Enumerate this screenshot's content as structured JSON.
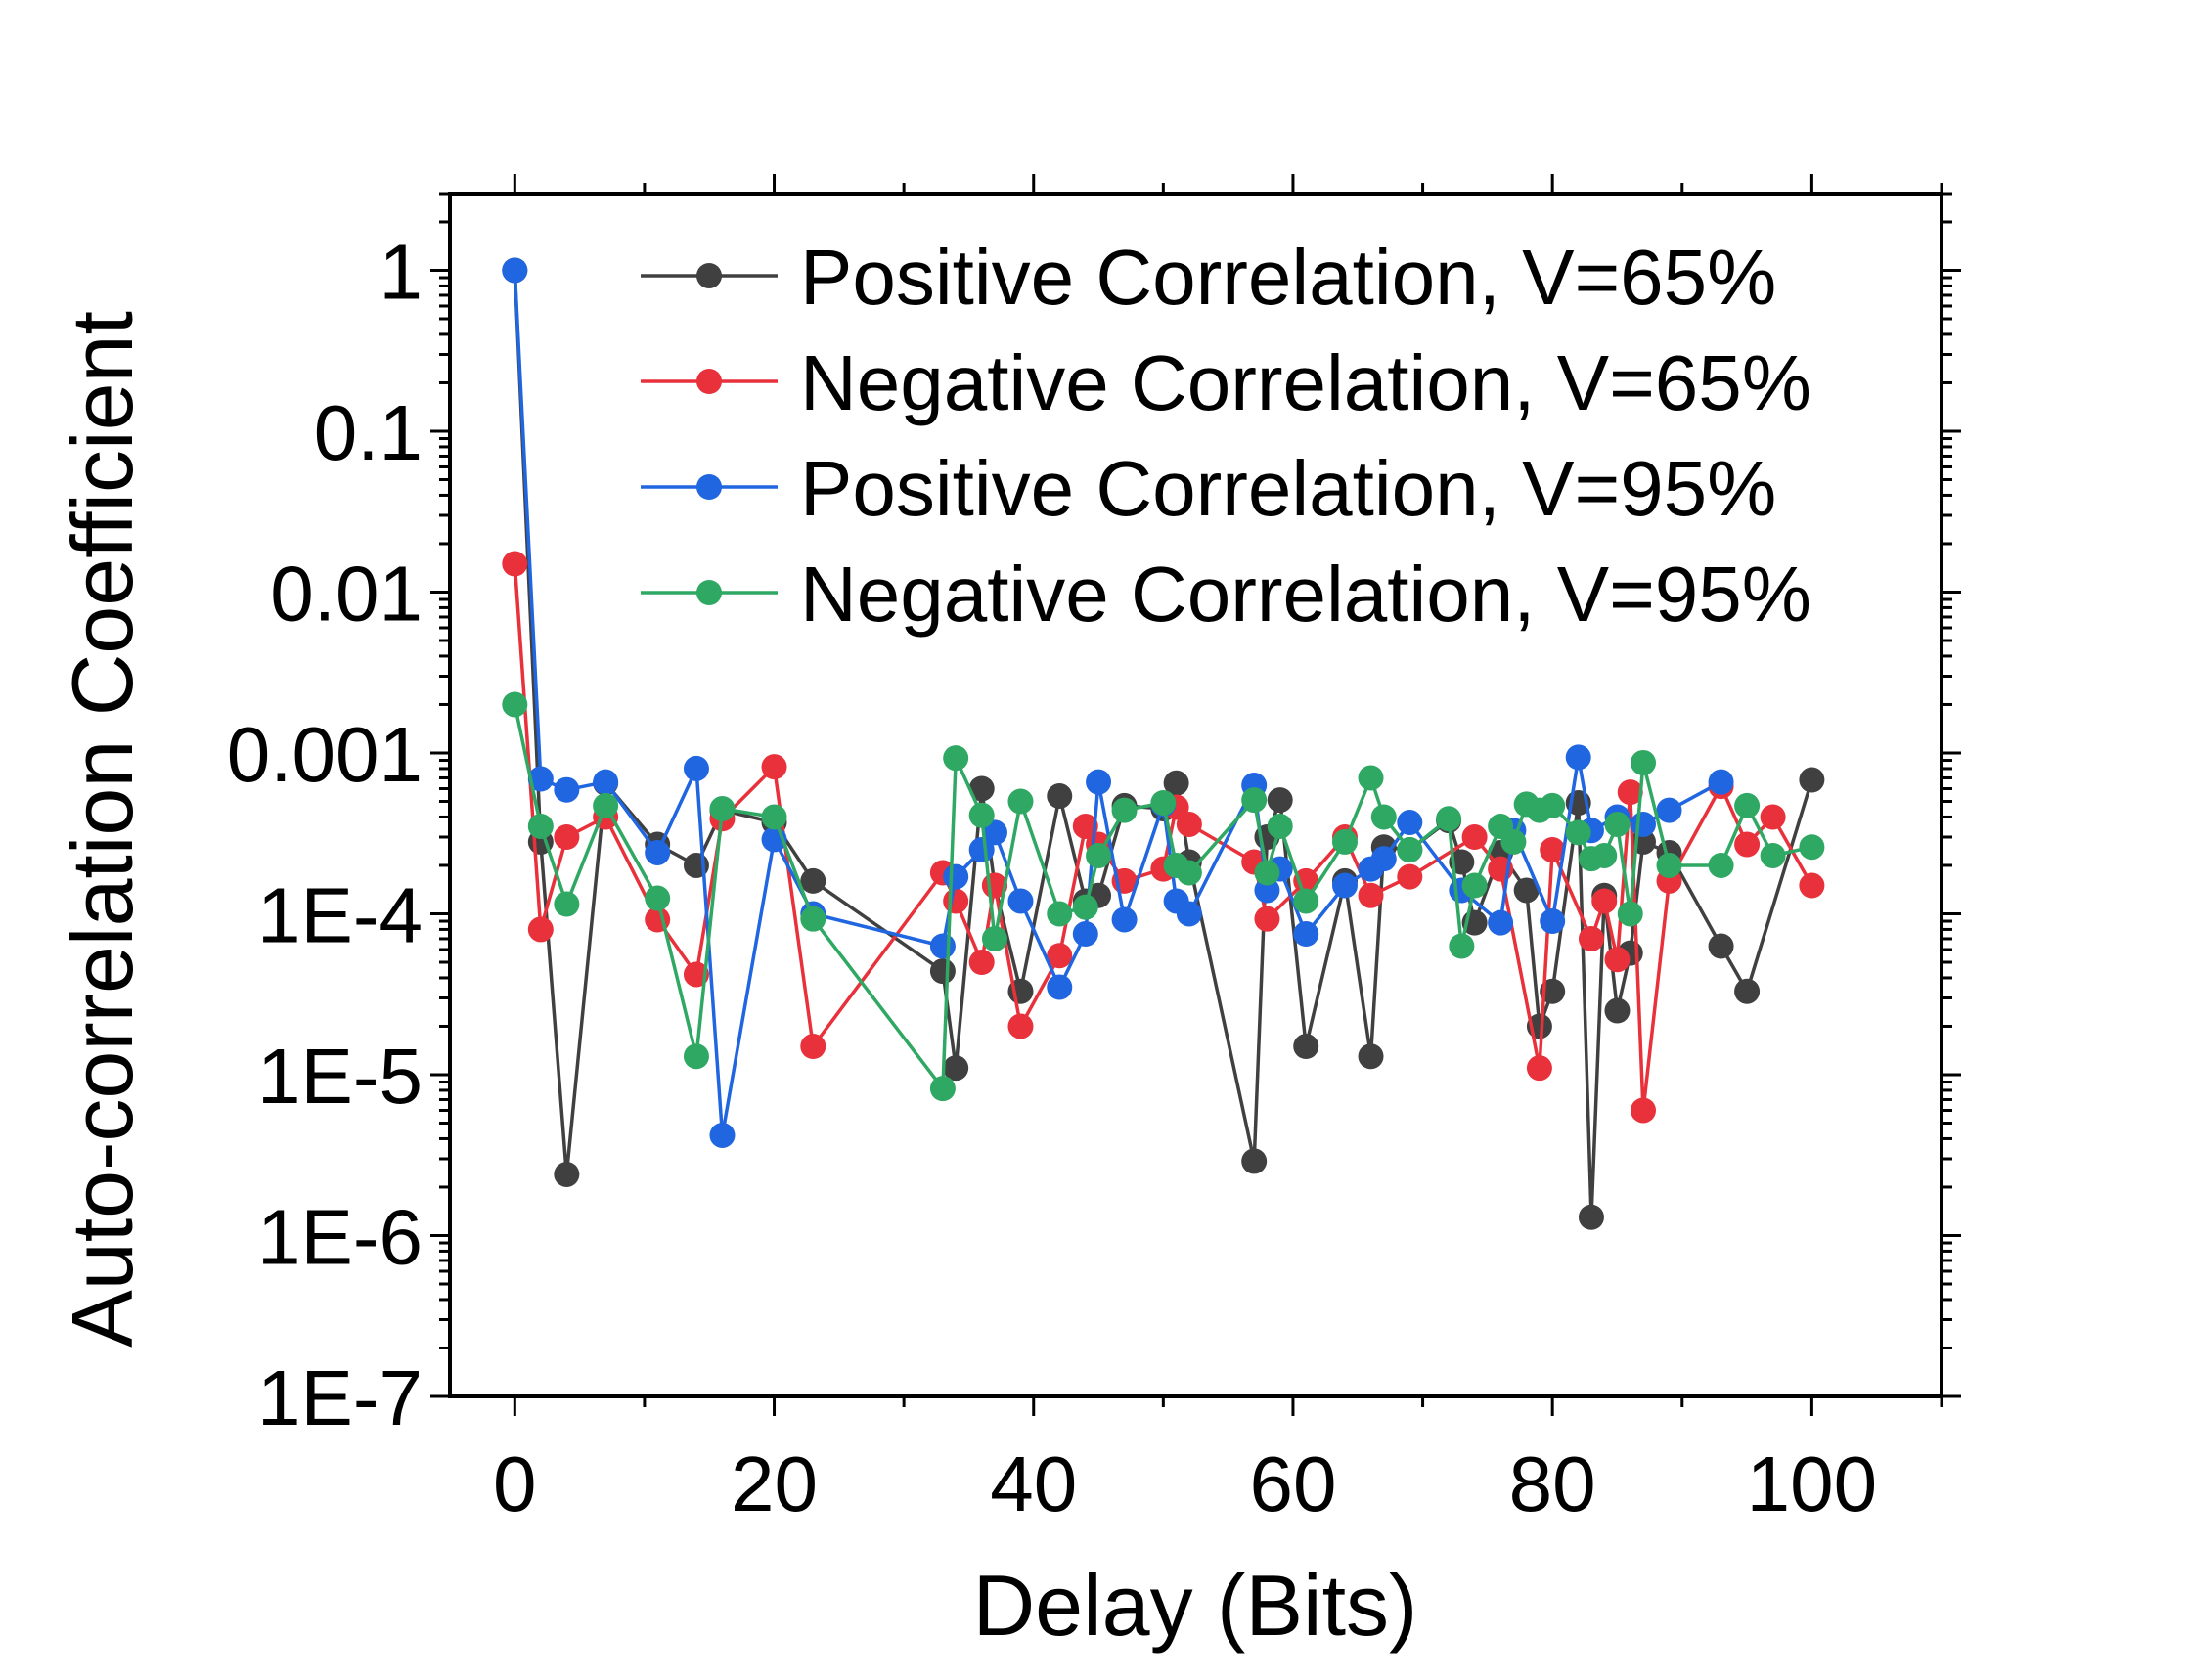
{
  "chart_data": {
    "type": "line",
    "title": "",
    "xlabel": "Delay (Bits)",
    "ylabel": "Auto-correlation Coefficient",
    "xlim": [
      -5,
      110
    ],
    "ylim": [
      1e-07,
      3
    ],
    "yscale": "log",
    "xticks": [
      0,
      20,
      40,
      60,
      80,
      100
    ],
    "xtick_labels": [
      "0",
      "20",
      "40",
      "60",
      "80",
      "100"
    ],
    "yticks": [
      1,
      0.1,
      0.01,
      0.001,
      0.0001,
      1e-05,
      1e-06,
      1e-07
    ],
    "ytick_labels": [
      "1",
      "0.1",
      "0.01",
      "0.001",
      "1E-4",
      "1E-5",
      "1E-6",
      "1E-7"
    ],
    "legend_position": "top-right",
    "series": [
      {
        "name": "Positive Correlation, V=65%",
        "color": "#404040",
        "points": [
          [
            0,
            1
          ],
          [
            2,
            0.00028
          ],
          [
            4,
            2.4e-06
          ],
          [
            7,
            0.00065
          ],
          [
            11,
            0.00027
          ],
          [
            14,
            0.0002
          ],
          [
            16,
            0.00044
          ],
          [
            20,
            0.00037
          ],
          [
            23,
            0.00016
          ],
          [
            33,
            4.4e-05
          ],
          [
            34,
            1.1e-05
          ],
          [
            36,
            0.0006
          ],
          [
            37,
            0.00015
          ],
          [
            39,
            3.3e-05
          ],
          [
            42,
            0.00054
          ],
          [
            44,
            0.00012
          ],
          [
            45,
            0.00013
          ],
          [
            47,
            0.00047
          ],
          [
            50,
            0.00045
          ],
          [
            51,
            0.00065
          ],
          [
            52,
            0.00021
          ],
          [
            57,
            2.9e-06
          ],
          [
            58,
            0.0003
          ],
          [
            59,
            0.00051
          ],
          [
            61,
            1.5e-05
          ],
          [
            64,
            0.00016
          ],
          [
            66,
            1.3e-05
          ],
          [
            67,
            0.00026
          ],
          [
            69,
            0.00025
          ],
          [
            72,
            0.00038
          ],
          [
            73,
            0.00021
          ],
          [
            74,
            8.8e-05
          ],
          [
            76,
            0.00024
          ],
          [
            78,
            0.00014
          ],
          [
            79,
            2e-05
          ],
          [
            80,
            3.3e-05
          ],
          [
            82,
            0.00049
          ],
          [
            83,
            1.3e-06
          ],
          [
            84,
            0.00013
          ],
          [
            85,
            2.5e-05
          ],
          [
            86,
            5.7e-05
          ],
          [
            87,
            0.00028
          ],
          [
            89,
            0.00024
          ],
          [
            93,
            6.3e-05
          ],
          [
            95,
            3.3e-05
          ],
          [
            100,
            0.00068
          ]
        ]
      },
      {
        "name": "Negative Correlation, V=65%",
        "color": "#e8313b",
        "points": [
          [
            0,
            0.015
          ],
          [
            2,
            8e-05
          ],
          [
            4,
            0.0003
          ],
          [
            7,
            0.0004
          ],
          [
            11,
            9.2e-05
          ],
          [
            14,
            4.2e-05
          ],
          [
            16,
            0.00039
          ],
          [
            20,
            0.00082
          ],
          [
            23,
            1.5e-05
          ],
          [
            33,
            0.00018
          ],
          [
            34,
            0.00012
          ],
          [
            36,
            5e-05
          ],
          [
            37,
            0.00015
          ],
          [
            39,
            2e-05
          ],
          [
            42,
            5.5e-05
          ],
          [
            44,
            0.00035
          ],
          [
            45,
            0.00027
          ],
          [
            47,
            0.00016
          ],
          [
            50,
            0.00019
          ],
          [
            51,
            0.00046
          ],
          [
            52,
            0.00036
          ],
          [
            57,
            0.00021
          ],
          [
            58,
            9.3e-05
          ],
          [
            61,
            0.00016
          ],
          [
            64,
            0.0003
          ],
          [
            66,
            0.00013
          ],
          [
            69,
            0.00017
          ],
          [
            74,
            0.0003
          ],
          [
            76,
            0.00019
          ],
          [
            79,
            1.1e-05
          ],
          [
            80,
            0.00025
          ],
          [
            83,
            7e-05
          ],
          [
            84,
            0.00012
          ],
          [
            85,
            5.2e-05
          ],
          [
            86,
            0.00057
          ],
          [
            87,
            6e-06
          ],
          [
            89,
            0.00016
          ],
          [
            93,
            0.00062
          ],
          [
            95,
            0.00027
          ],
          [
            97,
            0.0004
          ],
          [
            100,
            0.00015
          ]
        ]
      },
      {
        "name": "Positive Correlation, V=95%",
        "color": "#1f66e0",
        "points": [
          [
            0,
            1
          ],
          [
            2,
            0.00069
          ],
          [
            4,
            0.00059
          ],
          [
            7,
            0.00066
          ],
          [
            11,
            0.00024
          ],
          [
            14,
            0.0008
          ],
          [
            16,
            4.2e-06
          ],
          [
            20,
            0.00029
          ],
          [
            23,
            0.0001
          ],
          [
            33,
            6.3e-05
          ],
          [
            34,
            0.00017
          ],
          [
            36,
            0.00025
          ],
          [
            37,
            0.00032
          ],
          [
            39,
            0.00012
          ],
          [
            42,
            3.5e-05
          ],
          [
            44,
            7.5e-05
          ],
          [
            45,
            0.00066
          ],
          [
            47,
            9.2e-05
          ],
          [
            50,
            0.00048
          ],
          [
            51,
            0.00012
          ],
          [
            52,
            0.0001
          ],
          [
            57,
            0.00063
          ],
          [
            58,
            0.00014
          ],
          [
            59,
            0.00019
          ],
          [
            61,
            7.5e-05
          ],
          [
            64,
            0.00015
          ],
          [
            66,
            0.00019
          ],
          [
            67,
            0.00022
          ],
          [
            69,
            0.00037
          ],
          [
            73,
            0.00014
          ],
          [
            76,
            8.8e-05
          ],
          [
            77,
            0.00033
          ],
          [
            80,
            9e-05
          ],
          [
            82,
            0.00094
          ],
          [
            83,
            0.00033
          ],
          [
            85,
            0.0004
          ],
          [
            87,
            0.00036
          ],
          [
            89,
            0.00044
          ],
          [
            93,
            0.00066
          ]
        ]
      },
      {
        "name": "Negative Correlation, V=95%",
        "color": "#2ea862",
        "points": [
          [
            0,
            0.002
          ],
          [
            2,
            0.00035
          ],
          [
            4,
            0.000115
          ],
          [
            7,
            0.00047
          ],
          [
            11,
            0.000125
          ],
          [
            14,
            1.3e-05
          ],
          [
            16,
            0.00045
          ],
          [
            20,
            0.0004
          ],
          [
            23,
            9.3e-05
          ],
          [
            33,
            8.2e-06
          ],
          [
            34,
            0.00093
          ],
          [
            36,
            0.00041
          ],
          [
            37,
            7e-05
          ],
          [
            39,
            0.0005
          ],
          [
            42,
            0.0001
          ],
          [
            44,
            0.00011
          ],
          [
            45,
            0.00023
          ],
          [
            47,
            0.00044
          ],
          [
            50,
            0.00049
          ],
          [
            51,
            0.0002
          ],
          [
            52,
            0.00018
          ],
          [
            57,
            0.00051
          ],
          [
            58,
            0.00018
          ],
          [
            59,
            0.00035
          ],
          [
            61,
            0.00012
          ],
          [
            64,
            0.00028
          ],
          [
            66,
            0.0007
          ],
          [
            67,
            0.0004
          ],
          [
            69,
            0.00025
          ],
          [
            72,
            0.00039
          ],
          [
            73,
            6.3e-05
          ],
          [
            74,
            0.00015
          ],
          [
            76,
            0.00035
          ],
          [
            77,
            0.00028
          ],
          [
            78,
            0.00048
          ],
          [
            79,
            0.00044
          ],
          [
            80,
            0.00047
          ],
          [
            82,
            0.00032
          ],
          [
            83,
            0.00022
          ],
          [
            84,
            0.00023
          ],
          [
            85,
            0.00036
          ],
          [
            86,
            0.0001
          ],
          [
            87,
            0.00087
          ],
          [
            89,
            0.0002
          ],
          [
            93,
            0.0002
          ],
          [
            95,
            0.00047
          ],
          [
            97,
            0.00023
          ],
          [
            100,
            0.00026
          ]
        ]
      }
    ]
  }
}
